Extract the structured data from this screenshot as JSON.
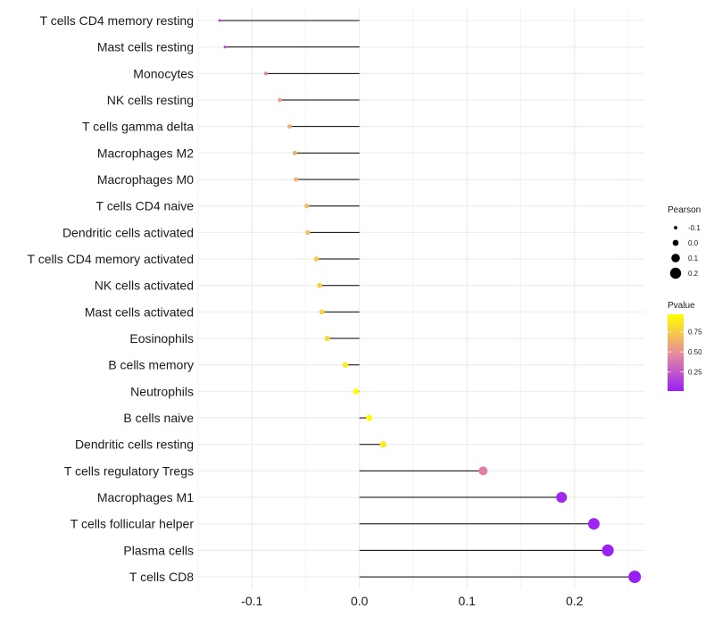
{
  "chart_data": {
    "type": "lollipop",
    "title": "",
    "xlabel": "",
    "ylabel": "",
    "xlim": [
      -0.15,
      0.265
    ],
    "xticks": [
      -0.1,
      0.0,
      0.1,
      0.2
    ],
    "xtick_labels": [
      "-0.1",
      "0.0",
      "0.1",
      "0.2"
    ],
    "grid": true,
    "categories": [
      "T cells CD4 memory resting",
      "Mast cells resting",
      "Monocytes",
      "NK cells resting",
      "T cells gamma delta",
      "Macrophages M2",
      "Macrophages M0",
      "T cells CD4 naive",
      "Dendritic cells activated",
      "T cells CD4 memory activated",
      "NK cells activated",
      "Mast cells activated",
      "Eosinophils",
      "B cells memory",
      "Neutrophils",
      "B cells naive",
      "Dendritic cells resting",
      "T cells regulatory  Tregs ",
      "Macrophages M1",
      "T cells follicular helper",
      "Plasma cells",
      "T cells CD8"
    ],
    "pearson": [
      -0.13,
      -0.125,
      -0.087,
      -0.074,
      -0.065,
      -0.06,
      -0.059,
      -0.049,
      -0.048,
      -0.04,
      -0.037,
      -0.035,
      -0.03,
      -0.013,
      -0.003,
      0.009,
      0.022,
      0.115,
      0.188,
      0.218,
      0.231,
      0.256
    ],
    "pvalue": [
      0.15,
      0.2,
      0.45,
      0.55,
      0.62,
      0.63,
      0.64,
      0.7,
      0.7,
      0.75,
      0.77,
      0.78,
      0.8,
      0.88,
      0.97,
      0.95,
      0.88,
      0.42,
      0.05,
      0.03,
      0.02,
      0.01
    ],
    "legend": {
      "size": {
        "title": "Pearson",
        "labels": [
          "-0.1",
          "0.0",
          "0.1",
          "0.2"
        ],
        "values": [
          -0.1,
          0.0,
          0.1,
          0.2
        ]
      },
      "color": {
        "title": "Pvalue",
        "labels": [
          "0.75",
          "0.50",
          "0.25"
        ],
        "values": [
          0.75,
          0.5,
          0.25
        ],
        "range": [
          0.01,
          0.97
        ],
        "low_color": "#9a1ff5",
        "mid_color": "#e8909a",
        "high_color": "#ffff00"
      },
      "placement": "right"
    }
  }
}
